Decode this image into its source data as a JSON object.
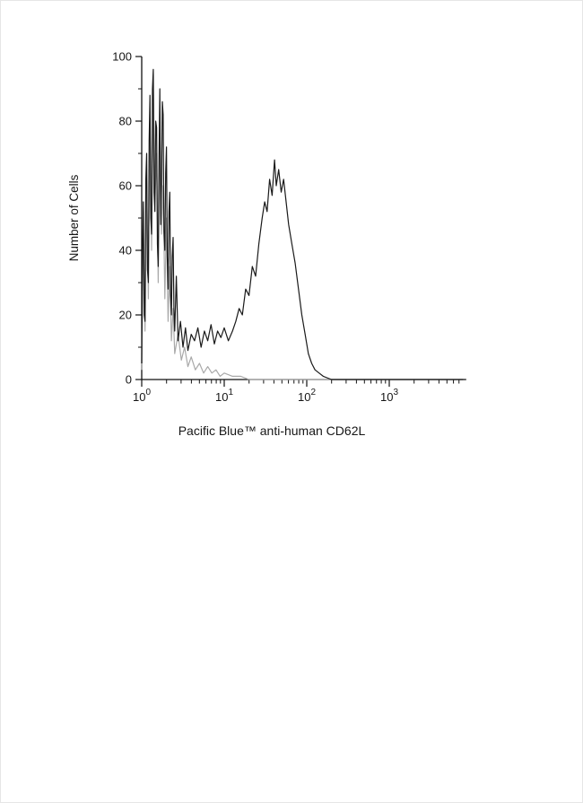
{
  "page": {
    "background": "#ffffff"
  },
  "chart_data": {
    "type": "line",
    "title": "",
    "subtitle": "",
    "xlabel": "Pacific Blue™ anti-human CD62L",
    "ylabel": "Number of Cells",
    "x_scale": "log10",
    "x_range_decades": [
      0,
      3.9
    ],
    "x_major_ticks_exponents": [
      0,
      1,
      2,
      3
    ],
    "x_major_tick_base": "10",
    "ylim": [
      0,
      100
    ],
    "y_ticks": [
      0,
      20,
      40,
      60,
      80,
      100
    ],
    "grid": false,
    "legend": "none",
    "axis_color": "#111111",
    "series": [
      {
        "name": "gray-control-trace",
        "color": "#a9a9a9",
        "points_format": "[log10(x), cell_count]",
        "points": [
          [
            0.0,
            3
          ],
          [
            0.02,
            48
          ],
          [
            0.04,
            15
          ],
          [
            0.06,
            62
          ],
          [
            0.08,
            25
          ],
          [
            0.1,
            80
          ],
          [
            0.12,
            40
          ],
          [
            0.14,
            90
          ],
          [
            0.16,
            55
          ],
          [
            0.18,
            70
          ],
          [
            0.2,
            30
          ],
          [
            0.22,
            75
          ],
          [
            0.24,
            45
          ],
          [
            0.26,
            60
          ],
          [
            0.28,
            25
          ],
          [
            0.3,
            50
          ],
          [
            0.32,
            18
          ],
          [
            0.34,
            35
          ],
          [
            0.36,
            12
          ],
          [
            0.38,
            22
          ],
          [
            0.4,
            8
          ],
          [
            0.44,
            14
          ],
          [
            0.48,
            6
          ],
          [
            0.52,
            10
          ],
          [
            0.56,
            4
          ],
          [
            0.6,
            7
          ],
          [
            0.65,
            3
          ],
          [
            0.7,
            5
          ],
          [
            0.75,
            2
          ],
          [
            0.8,
            4
          ],
          [
            0.85,
            2
          ],
          [
            0.9,
            3
          ],
          [
            0.95,
            1
          ],
          [
            1.0,
            2
          ],
          [
            1.1,
            1
          ],
          [
            1.2,
            1
          ],
          [
            1.3,
            0
          ],
          [
            1.5,
            0
          ],
          [
            2.0,
            0
          ],
          [
            3.9,
            0
          ]
        ]
      },
      {
        "name": "black-cd62l-trace",
        "color": "#1a1a1a",
        "points_format": "[log10(x), cell_count]",
        "points": [
          [
            0.0,
            5
          ],
          [
            0.01,
            40
          ],
          [
            0.02,
            55
          ],
          [
            0.03,
            20
          ],
          [
            0.04,
            18
          ],
          [
            0.05,
            62
          ],
          [
            0.06,
            70
          ],
          [
            0.07,
            34
          ],
          [
            0.08,
            30
          ],
          [
            0.09,
            74
          ],
          [
            0.1,
            88
          ],
          [
            0.11,
            50
          ],
          [
            0.12,
            45
          ],
          [
            0.13,
            90
          ],
          [
            0.14,
            96
          ],
          [
            0.15,
            58
          ],
          [
            0.16,
            52
          ],
          [
            0.17,
            80
          ],
          [
            0.18,
            78
          ],
          [
            0.19,
            42
          ],
          [
            0.2,
            35
          ],
          [
            0.21,
            68
          ],
          [
            0.22,
            90
          ],
          [
            0.23,
            48
          ],
          [
            0.24,
            60
          ],
          [
            0.25,
            86
          ],
          [
            0.26,
            82
          ],
          [
            0.27,
            46
          ],
          [
            0.28,
            40
          ],
          [
            0.29,
            64
          ],
          [
            0.3,
            72
          ],
          [
            0.31,
            38
          ],
          [
            0.32,
            28
          ],
          [
            0.33,
            52
          ],
          [
            0.34,
            58
          ],
          [
            0.35,
            26
          ],
          [
            0.36,
            20
          ],
          [
            0.37,
            38
          ],
          [
            0.38,
            44
          ],
          [
            0.39,
            22
          ],
          [
            0.4,
            15
          ],
          [
            0.42,
            32
          ],
          [
            0.44,
            12
          ],
          [
            0.47,
            18
          ],
          [
            0.5,
            10
          ],
          [
            0.53,
            16
          ],
          [
            0.56,
            9
          ],
          [
            0.6,
            14
          ],
          [
            0.64,
            12
          ],
          [
            0.68,
            16
          ],
          [
            0.72,
            10
          ],
          [
            0.76,
            15
          ],
          [
            0.8,
            12
          ],
          [
            0.84,
            17
          ],
          [
            0.88,
            11
          ],
          [
            0.92,
            15
          ],
          [
            0.96,
            13
          ],
          [
            1.0,
            16
          ],
          [
            1.05,
            12
          ],
          [
            1.1,
            15
          ],
          [
            1.14,
            18
          ],
          [
            1.18,
            22
          ],
          [
            1.22,
            20
          ],
          [
            1.26,
            28
          ],
          [
            1.3,
            26
          ],
          [
            1.34,
            35
          ],
          [
            1.38,
            32
          ],
          [
            1.42,
            42
          ],
          [
            1.46,
            50
          ],
          [
            1.49,
            55
          ],
          [
            1.52,
            52
          ],
          [
            1.55,
            62
          ],
          [
            1.58,
            57
          ],
          [
            1.61,
            68
          ],
          [
            1.63,
            60
          ],
          [
            1.66,
            65
          ],
          [
            1.69,
            58
          ],
          [
            1.72,
            62
          ],
          [
            1.75,
            55
          ],
          [
            1.78,
            48
          ],
          [
            1.82,
            42
          ],
          [
            1.86,
            36
          ],
          [
            1.9,
            28
          ],
          [
            1.94,
            20
          ],
          [
            1.98,
            14
          ],
          [
            2.02,
            8
          ],
          [
            2.06,
            5
          ],
          [
            2.1,
            3
          ],
          [
            2.15,
            2
          ],
          [
            2.2,
            1
          ],
          [
            2.3,
            0
          ],
          [
            2.6,
            0
          ],
          [
            3.9,
            0
          ]
        ]
      }
    ]
  }
}
